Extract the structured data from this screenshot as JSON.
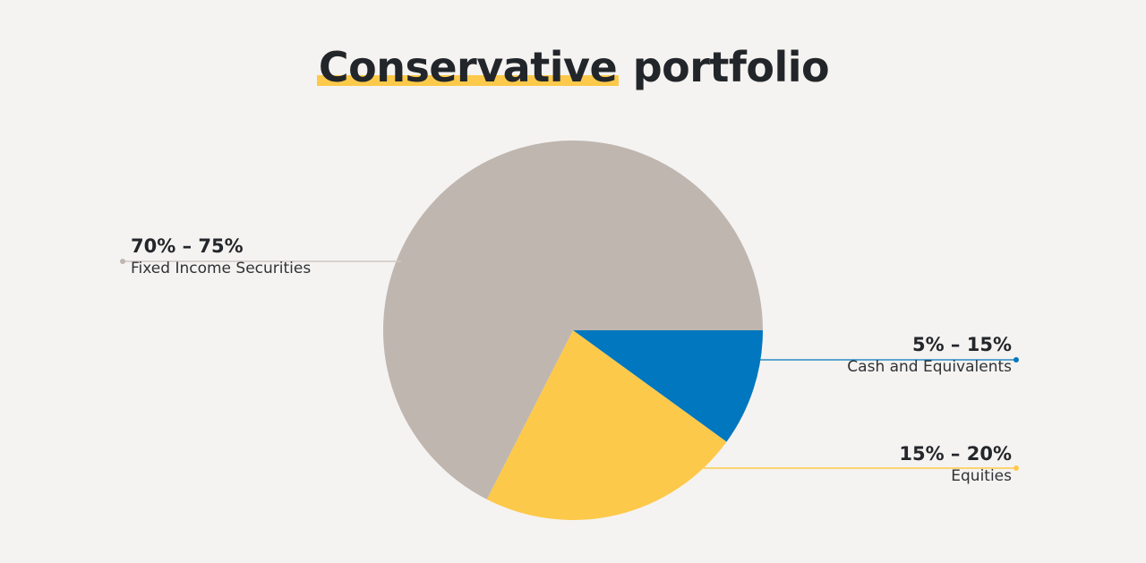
{
  "chart_data": {
    "type": "pie",
    "title_highlight": "Conservative",
    "title_rest": "portfolio",
    "slices": [
      {
        "label": "Cash and Equivalents",
        "range_label": "5% – 15%",
        "value": 10,
        "color": "#0077be"
      },
      {
        "label": "Equities",
        "range_label": "15% – 20%",
        "value": 22.5,
        "color": "#fdc94a"
      },
      {
        "label": "Fixed Income Securities",
        "range_label": "70% – 75%",
        "value": 67.5,
        "color": "#bfb6b0"
      }
    ]
  }
}
